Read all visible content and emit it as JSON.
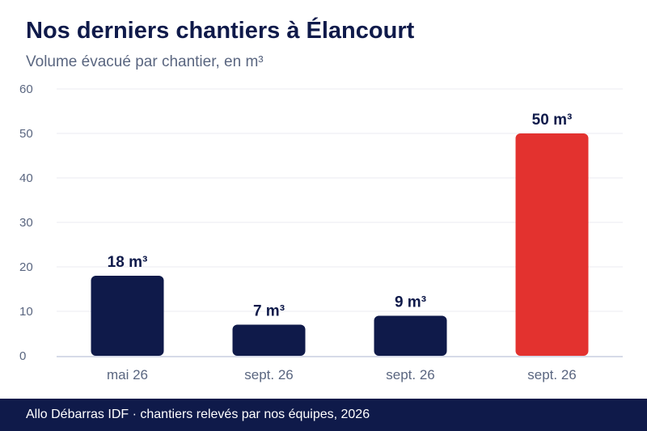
{
  "title": "Nos derniers chantiers à Élancourt",
  "subtitle": "Volume évacué par chantier, en m³",
  "footer": "Allo Débarras IDF · chantiers relevés par nos équipes, 2026",
  "colors": {
    "bar_default": "#0f1a4a",
    "bar_highlight": "#e3322f",
    "grid": "#ebebf0",
    "axis": "#c9cde0",
    "tick_text": "#5a6680",
    "label_text": "#0f1a4a"
  },
  "chart_data": {
    "type": "bar",
    "categories": [
      "mai 26",
      "sept. 26",
      "sept. 26",
      "sept. 26"
    ],
    "values": [
      18,
      7,
      9,
      50
    ],
    "data_labels": [
      "18 m³",
      "7 m³",
      "9 m³",
      "50 m³"
    ],
    "highlight_index": 3,
    "ylim": [
      0,
      60
    ],
    "yticks": [
      0,
      10,
      20,
      30,
      40,
      50,
      60
    ],
    "xlabel": "",
    "ylabel": "",
    "grid": true
  }
}
